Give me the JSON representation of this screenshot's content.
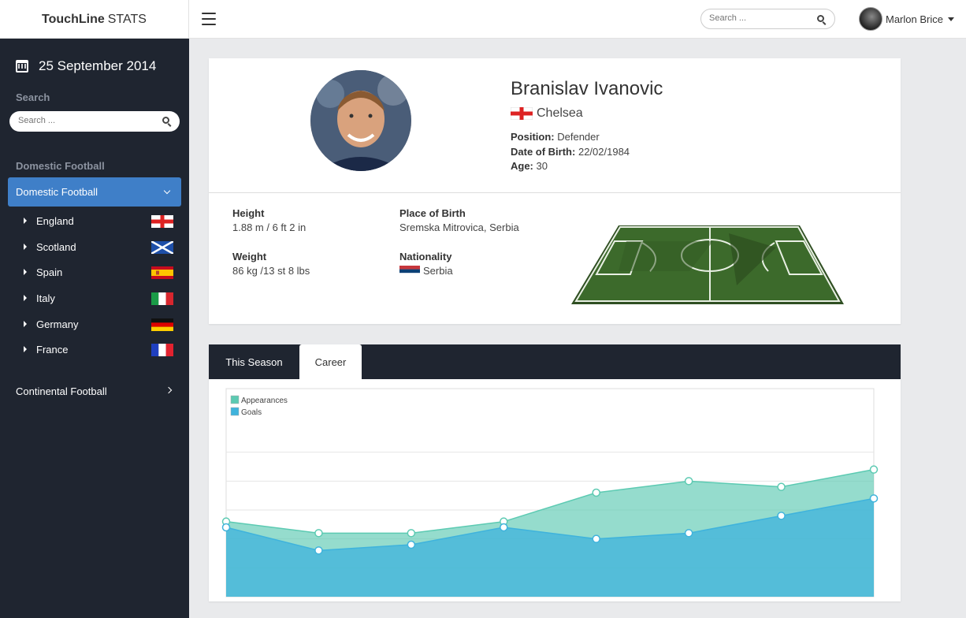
{
  "app": {
    "brand_bold": "TouchLine",
    "brand_light": "STATS"
  },
  "header": {
    "search_placeholder": "Search ...",
    "user_name": "Marlon Brice"
  },
  "sidebar": {
    "date": "25 September 2014",
    "search_label": "Search",
    "search_placeholder": "Search ...",
    "section_label": "Domestic Football",
    "active_item": "Domestic Football",
    "countries": [
      {
        "label": "England",
        "flag": "england"
      },
      {
        "label": "Scotland",
        "flag": "scotland"
      },
      {
        "label": "Spain",
        "flag": "spain"
      },
      {
        "label": "Italy",
        "flag": "italy"
      },
      {
        "label": "Germany",
        "flag": "germany"
      },
      {
        "label": "France",
        "flag": "france"
      }
    ],
    "continental": "Continental Football"
  },
  "profile": {
    "name": "Branislav Ivanovic",
    "club": "Chelsea",
    "position_label": "Position:",
    "position": "Defender",
    "dob_label": "Date of Birth:",
    "dob": "22/02/1984",
    "age_label": "Age:",
    "age": "30",
    "height_label": "Height",
    "height": "1.88 m / 6 ft 2 in",
    "weight_label": "Weight",
    "weight": "86 kg /13 st 8 lbs",
    "birthplace_label": "Place of Birth",
    "birthplace": "Sremska Mitrovica, Serbia",
    "nationality_label": "Nationality",
    "nationality": "Serbia"
  },
  "tabs": {
    "season": "This Season",
    "career": "Career"
  },
  "colors": {
    "accent": "#3f7fc8",
    "sidebar": "#1f2530",
    "appearances": "#5ccab2",
    "goals": "#3fb3dc"
  },
  "chart_data": {
    "type": "area",
    "title": "",
    "xlabel": "",
    "ylabel": "",
    "ylim": [
      0,
      6
    ],
    "grid": true,
    "legend_position": "top-left",
    "x": [
      1,
      2,
      3,
      4,
      5,
      6,
      7,
      8
    ],
    "series": [
      {
        "name": "Appearances",
        "values": [
          2.6,
          2.2,
          2.2,
          2.6,
          3.6,
          4.0,
          3.8,
          4.4
        ]
      },
      {
        "name": "Goals",
        "values": [
          2.4,
          1.6,
          1.8,
          2.4,
          2.0,
          2.2,
          2.8,
          3.4
        ]
      }
    ]
  }
}
